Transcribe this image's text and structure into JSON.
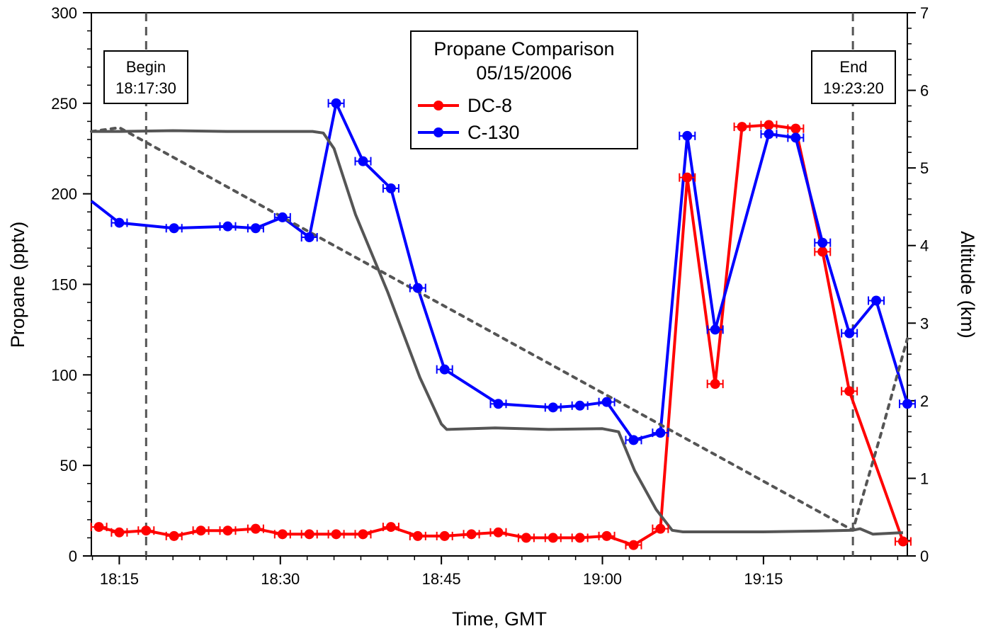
{
  "chart_data": {
    "type": "line",
    "title": "Propane Comparison",
    "subtitle": "05/15/2006",
    "xlabel": "Time, GMT",
    "ylabel": "Propane  (pptv)",
    "y2label": "Altitude  (km)",
    "x_tick_labels": [
      "18:15",
      "18:30",
      "18:45",
      "19:00",
      "19:15"
    ],
    "x_ticks_minutes": [
      15,
      30,
      45,
      60,
      75
    ],
    "x_minor_step_minutes": 2.5,
    "xlim_minutes_after_18_00": [
      12.4,
      88.4
    ],
    "ylim": [
      0,
      300
    ],
    "y_ticks": [
      0,
      50,
      100,
      150,
      200,
      250,
      300
    ],
    "y_minor_step": 10,
    "y2lim": [
      0,
      7
    ],
    "y2_ticks": [
      0,
      1,
      2,
      3,
      4,
      5,
      6,
      7
    ],
    "y2_minor_step": 0.2,
    "legend_position": "top-center",
    "markers": [
      {
        "label_line1": "Begin",
        "label_line2": "18:17:30",
        "minute": 17.5
      },
      {
        "label_line1": "End",
        "label_line2": "19:23:20",
        "minute": 83.33
      }
    ],
    "series": [
      {
        "name": "DC-8",
        "color": "#ff0000",
        "x": [
          13.1,
          15.0,
          17.5,
          20.1,
          22.6,
          25.1,
          27.7,
          30.2,
          32.7,
          35.2,
          37.7,
          40.3,
          42.8,
          45.3,
          47.8,
          50.3,
          52.9,
          55.4,
          57.9,
          60.4,
          62.9,
          65.4,
          67.9,
          70.5,
          73.0,
          75.5,
          78.0,
          80.5,
          83.0,
          88.0
        ],
        "y": [
          16,
          13,
          14,
          11,
          14,
          14,
          15,
          12,
          12,
          12,
          12,
          16,
          11,
          11,
          12,
          13,
          10,
          10,
          10,
          11,
          6,
          15,
          209,
          95,
          237,
          238,
          236,
          168,
          91,
          8
        ]
      },
      {
        "name": "C-130",
        "color": "#0000ff",
        "x": [
          12.4,
          15.0,
          20.1,
          25.1,
          27.7,
          30.2,
          32.7,
          35.2,
          37.7,
          40.3,
          42.8,
          45.3,
          50.3,
          55.4,
          57.9,
          60.4,
          62.9,
          65.4,
          67.9,
          70.5,
          75.5,
          78.0,
          80.5,
          83.0,
          85.5,
          88.4
        ],
        "y": [
          196,
          184,
          181,
          182,
          181,
          187,
          176,
          250,
          218,
          203,
          148,
          103,
          84,
          82,
          83,
          85,
          64,
          68,
          232,
          125,
          233,
          231,
          173,
          123,
          141,
          84
        ],
        "marker_from_index": 1
      },
      {
        "name": "Altitude",
        "axis": "right",
        "color": "#555555",
        "x": [
          12.4,
          15.0,
          20.0,
          25.0,
          30.0,
          33.0,
          34.0,
          35.0,
          37.0,
          40.0,
          43.0,
          45.0,
          45.5,
          50.0,
          55.0,
          60.0,
          61.5,
          63.0,
          65.0,
          66.5,
          67.5,
          70.0,
          75.0,
          80.0,
          83.3,
          84.0,
          85.2,
          88.0
        ],
        "y": [
          5.47,
          5.47,
          5.48,
          5.47,
          5.47,
          5.47,
          5.45,
          5.25,
          4.4,
          3.4,
          2.3,
          1.7,
          1.63,
          1.65,
          1.63,
          1.64,
          1.6,
          1.1,
          0.6,
          0.33,
          0.31,
          0.31,
          0.31,
          0.32,
          0.33,
          0.35,
          0.28,
          0.3
        ]
      },
      {
        "name": "Altitude (dotted)",
        "axis": "right",
        "color": "#555555",
        "style": "dotted",
        "x": [
          12.4,
          14.0,
          15.0,
          83.33,
          86.0,
          88.4
        ],
        "y": [
          5.47,
          5.5,
          5.52,
          0.33,
          1.6,
          2.8
        ]
      }
    ]
  }
}
